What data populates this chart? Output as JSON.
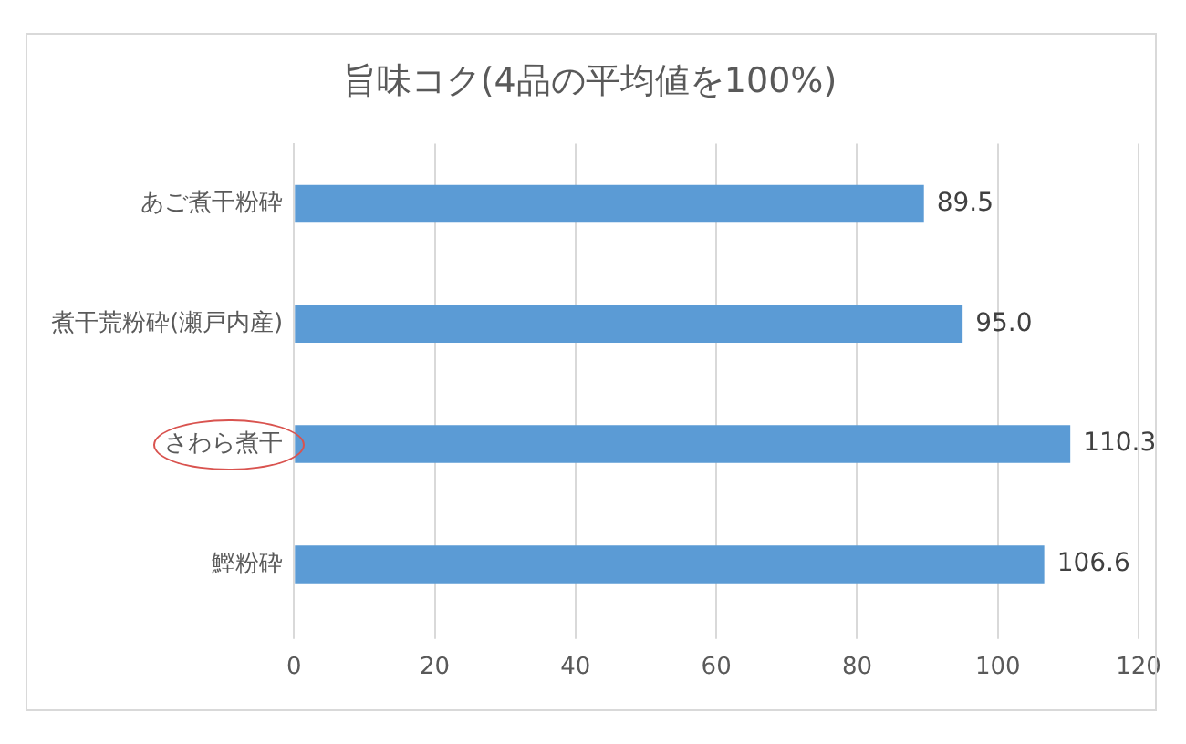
{
  "chart_data": {
    "type": "bar",
    "orientation": "horizontal",
    "title": "旨味コク(4品の平均値を100%)",
    "categories": [
      "あご煮干粉砕",
      "煮干荒粉砕(瀬戸内産)",
      "さわら煮干",
      "鰹粉砕"
    ],
    "values": [
      89.5,
      95.0,
      110.3,
      106.6
    ],
    "value_labels": [
      "89.5",
      "95.0",
      "110.3",
      "106.6"
    ],
    "color": "#5b9bd5",
    "xlim": [
      0,
      120
    ],
    "xticks": [
      0,
      20,
      40,
      60,
      80,
      100,
      120
    ],
    "grid": "x",
    "legend": false
  }
}
